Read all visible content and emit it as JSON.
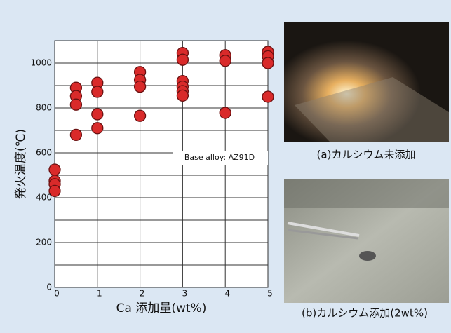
{
  "chart_data": {
    "type": "scatter",
    "y_label": "発火温度(℃)",
    "x_label": "Ca 添加量(wt%)",
    "annotation": "Base alloy: AZ91D",
    "series": [
      {
        "color": "#d92a2a",
        "x": [
          0,
          0,
          0,
          0,
          0.5,
          0.5,
          0.5,
          0.5,
          1,
          1,
          1,
          1,
          2,
          2,
          2,
          2,
          3,
          3,
          3,
          3,
          3,
          3,
          4,
          4,
          4,
          5,
          5,
          5,
          5
        ],
        "values": [
          525,
          475,
          460,
          430,
          890,
          853,
          815,
          680,
          912,
          872,
          772,
          710,
          960,
          925,
          895,
          765,
          1045,
          1015,
          920,
          895,
          875,
          855,
          1035,
          1010,
          778,
          1050,
          1030,
          1000,
          850
        ]
      }
    ],
    "xlim": [
      0,
      5
    ],
    "xticks": [
      0,
      1,
      2,
      3,
      4,
      5
    ],
    "ylim": [
      0,
      1100
    ],
    "yticks": [
      0,
      200,
      400,
      600,
      800,
      1000
    ],
    "y_minor_grid": [
      100,
      300,
      500,
      700,
      900,
      1100
    ],
    "grid": true
  },
  "photos": [
    {
      "caption": "(a)カルシウム未添加"
    },
    {
      "caption": "(b)カルシウム添加(2wt%)"
    }
  ]
}
